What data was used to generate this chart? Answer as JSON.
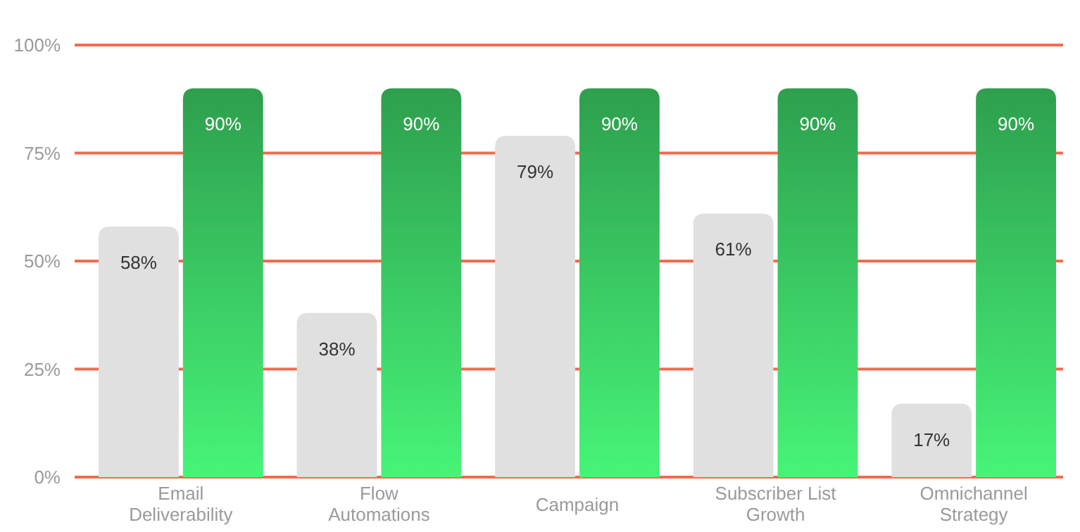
{
  "chart_data": {
    "type": "bar",
    "categories": [
      "Email Deliverability",
      "Flow Automations",
      "Campaign",
      "Subscriber List Growth",
      "Omnichannel Strategy"
    ],
    "series": [
      {
        "color": "#e0e0e0",
        "values": [
          58,
          38,
          79,
          61,
          17
        ],
        "value_labels": [
          "58%",
          "38%",
          "79%",
          "61%",
          "17%"
        ]
      },
      {
        "color": "#2e9f4e",
        "values": [
          90,
          90,
          90,
          90,
          90
        ],
        "value_labels": [
          "90%",
          "90%",
          "90%",
          "90%",
          "90%"
        ]
      }
    ],
    "ylim": [
      0,
      100
    ],
    "yticks": [
      {
        "value": 0,
        "label": "0%"
      },
      {
        "value": 25,
        "label": "25%"
      },
      {
        "value": 50,
        "label": "50%"
      },
      {
        "value": 75,
        "label": "75%"
      },
      {
        "value": 100,
        "label": "100%"
      }
    ],
    "grid": "y"
  }
}
